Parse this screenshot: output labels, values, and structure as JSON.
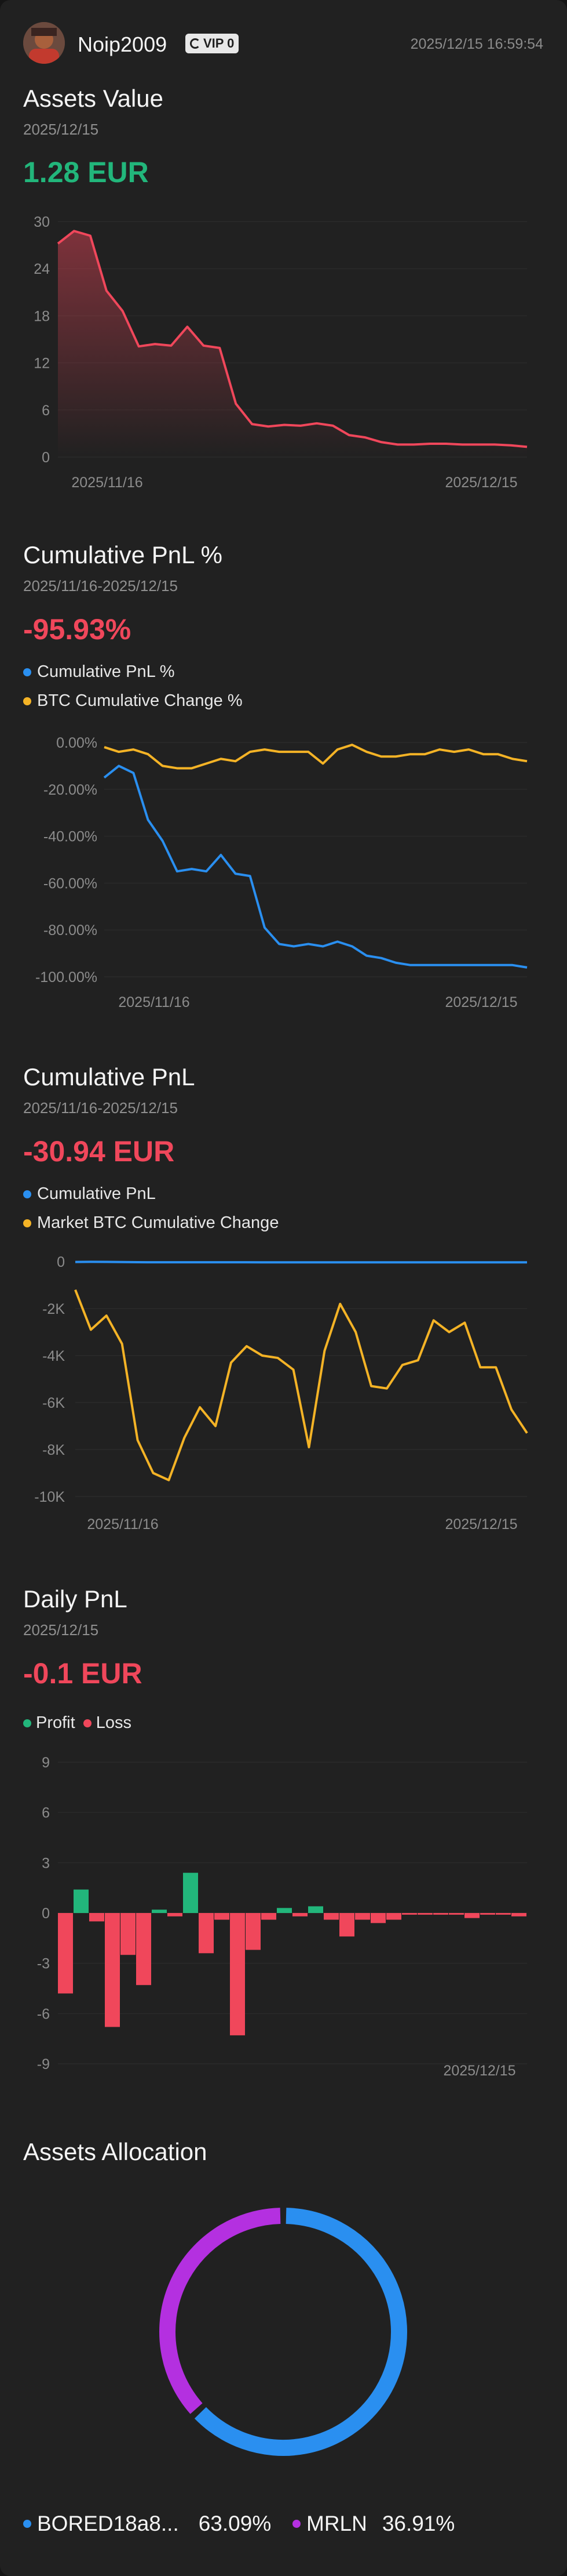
{
  "header": {
    "username": "Noip2009",
    "vip_label": "VIP 0",
    "timestamp": "2025/12/15 16:59:54"
  },
  "assets_value": {
    "title": "Assets Value",
    "date": "2025/12/15",
    "value": "1.28 EUR",
    "chart_data": {
      "type": "area",
      "color": "#f0475b",
      "y_ticks": [
        "30",
        "24",
        "18",
        "12",
        "6",
        "0"
      ],
      "ylim": [
        0,
        30
      ],
      "x_tick_labels": [
        "2025/11/16",
        "2025/12/15"
      ],
      "values": [
        27.2,
        28.8,
        28.2,
        21.2,
        18.6,
        14.1,
        14.4,
        14.2,
        16.6,
        14.2,
        13.9,
        6.8,
        4.2,
        3.9,
        4.1,
        4.0,
        4.3,
        4.0,
        2.8,
        2.5,
        1.9,
        1.6,
        1.6,
        1.7,
        1.7,
        1.6,
        1.6,
        1.6,
        1.5,
        1.3
      ]
    }
  },
  "cum_pnl_pct": {
    "title": "Cumulative PnL %",
    "date": "2025/11/16-2025/12/15",
    "value": "-95.93%",
    "legend": [
      {
        "label": "Cumulative PnL %",
        "color": "#2a8ff0"
      },
      {
        "label": "BTC Cumulative Change %",
        "color": "#f4b326"
      }
    ],
    "chart_data": {
      "type": "line",
      "y_ticks": [
        "0.00%",
        "-20.00%",
        "-40.00%",
        "-60.00%",
        "-80.00%",
        "-100.00%"
      ],
      "ylim": [
        -100,
        0
      ],
      "x_tick_labels": [
        "2025/11/16",
        "2025/12/15"
      ],
      "series": [
        {
          "name": "Cumulative PnL %",
          "color": "#2a8ff0",
          "values": [
            -15,
            -10,
            -13,
            -33,
            -42,
            -55,
            -54,
            -55,
            -48,
            -56,
            -57,
            -79,
            -86,
            -87,
            -86,
            -87,
            -85,
            -87,
            -91,
            -92,
            -94,
            -95,
            -95,
            -95,
            -95,
            -95,
            -95,
            -95,
            -95,
            -96
          ]
        },
        {
          "name": "BTC Cumulative Change %",
          "color": "#f4b326",
          "values": [
            -2,
            -4,
            -3,
            -5,
            -10,
            -11,
            -11,
            -9,
            -7,
            -8,
            -4,
            -3,
            -4,
            -4,
            -4,
            -9,
            -3,
            -1,
            -4,
            -6,
            -6,
            -5,
            -5,
            -3,
            -4,
            -3,
            -5,
            -5,
            -7,
            -8
          ]
        }
      ]
    }
  },
  "cum_pnl": {
    "title": "Cumulative PnL",
    "date": "2025/11/16-2025/12/15",
    "value": "-30.94 EUR",
    "legend": [
      {
        "label": "Cumulative PnL",
        "color": "#2a8ff0"
      },
      {
        "label": "Market BTC Cumulative Change",
        "color": "#f4b326"
      }
    ],
    "chart_data": {
      "type": "line",
      "y_ticks": [
        "0",
        "-2K",
        "-4K",
        "-6K",
        "-8K",
        "-10K"
      ],
      "ylim": [
        -10000,
        0
      ],
      "x_tick_labels": [
        "2025/11/16",
        "2025/12/15"
      ],
      "series": [
        {
          "name": "Cumulative PnL",
          "color": "#2a8ff0",
          "values": [
            -15,
            -10,
            -13,
            -20,
            -25,
            -28,
            -28,
            -28,
            -27,
            -28,
            -28,
            -29,
            -30,
            -30,
            -30,
            -30,
            -30,
            -30,
            -30,
            -30,
            -30,
            -31,
            -31,
            -31,
            -31,
            -31,
            -31,
            -31,
            -31,
            -31
          ]
        },
        {
          "name": "Market BTC Cumulative Change",
          "color": "#f4b326",
          "values": [
            -1200,
            -2900,
            -2300,
            -3500,
            -7600,
            -9000,
            -9300,
            -7500,
            -6200,
            -7000,
            -4300,
            -3600,
            -4000,
            -4100,
            -4600,
            -7900,
            -3800,
            -1800,
            -3000,
            -5300,
            -5400,
            -4400,
            -4200,
            -2500,
            -3000,
            -2600,
            -4500,
            -4500,
            -6300,
            -7300
          ]
        }
      ]
    }
  },
  "daily_pnl": {
    "title": "Daily PnL",
    "date": "2025/12/15",
    "value": "-0.1 EUR",
    "legend": [
      {
        "label": "Profit",
        "color": "#22b67b"
      },
      {
        "label": "Loss",
        "color": "#f0475b"
      }
    ],
    "chart_data": {
      "type": "bar",
      "y_ticks": [
        "9",
        "6",
        "3",
        "0",
        "-3",
        "-6",
        "-9"
      ],
      "ylim": [
        -9,
        9
      ],
      "x_tick_labels": [
        "2025/12/15"
      ],
      "profit_color": "#22b67b",
      "loss_color": "#f0475b",
      "values": [
        -4.8,
        1.4,
        -0.5,
        -6.8,
        -2.5,
        -4.3,
        0.2,
        -0.2,
        2.4,
        -2.4,
        -0.4,
        -7.3,
        -2.2,
        -0.4,
        0.3,
        -0.2,
        0.4,
        -0.4,
        -1.4,
        -0.4,
        -0.6,
        -0.4,
        -0.1,
        -0.1,
        -0.1,
        -0.1,
        -0.3,
        -0.1,
        -0.1,
        -0.2
      ]
    }
  },
  "allocation": {
    "title": "Assets Allocation",
    "chart_data": {
      "type": "pie",
      "slices": [
        {
          "label": "BORED18a8...",
          "value": 63.09,
          "pct": "63.09%",
          "color": "#2a8ff0"
        },
        {
          "label": "MRLN",
          "value": 36.91,
          "pct": "36.91%",
          "color": "#b430e0"
        }
      ]
    }
  }
}
